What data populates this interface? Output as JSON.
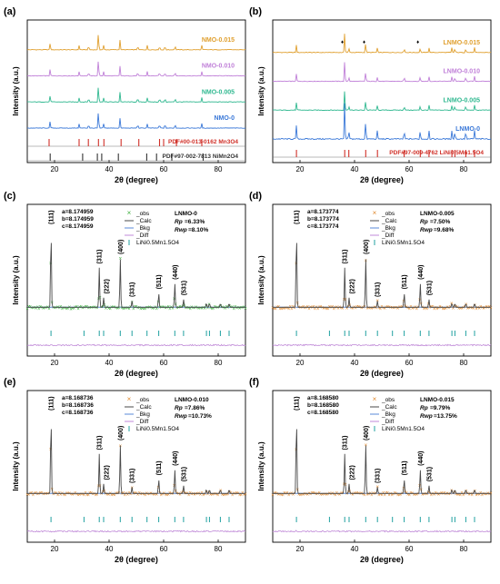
{
  "chart_data": [
    {
      "panel": "(a)",
      "type": "line",
      "xlabel": "2θ (degree)",
      "ylabel": "Intensity (a.u.)",
      "xlim": [
        10,
        90
      ],
      "xticks": [
        20,
        40,
        60,
        80
      ],
      "series": [
        {
          "name": "NMO-0.015",
          "color": "#e0a030"
        },
        {
          "name": "NMO-0.010",
          "color": "#c080d8"
        },
        {
          "name": "NMO-0.005",
          "color": "#30b890"
        },
        {
          "name": "NMO-0",
          "color": "#3a78d8"
        }
      ],
      "peaks": [
        18.4,
        29,
        32.5,
        36.1,
        38,
        44,
        50.5,
        54,
        58.5,
        60.5,
        64.2,
        74
      ],
      "reference_lines": [
        {
          "name": "PDF#00-013-0162 Mn3O4",
          "color": "#d03028",
          "positions": [
            18.0,
            29.0,
            32.4,
            36.1,
            38.1,
            44.4,
            50.9,
            58.5,
            60.0,
            64.7,
            74.0
          ]
        },
        {
          "name": "PDF#97-002-7813 NiMn2O4",
          "color": "#333333",
          "positions": [
            18.4,
            30.3,
            35.7,
            37.3,
            43.4,
            53.8,
            57.4,
            63.0,
            74.5
          ]
        }
      ]
    },
    {
      "panel": "(b)",
      "type": "line",
      "xlabel": "2θ (degree)",
      "ylabel": "Intensity (a.u.)",
      "xlim": [
        10,
        90
      ],
      "xticks": [
        20,
        40,
        60,
        80
      ],
      "series": [
        {
          "name": "LNMO-0.015",
          "color": "#e0a030"
        },
        {
          "name": "LNMO-0.010",
          "color": "#c080d8"
        },
        {
          "name": "LNMO-0.005",
          "color": "#30b890"
        },
        {
          "name": "LNMO-0",
          "color": "#3a78d8"
        }
      ],
      "peaks": [
        18.7,
        36.4,
        37.9,
        44.1,
        48.4,
        58.2,
        64.1,
        67.3,
        75.7,
        76.8,
        80.8,
        84.0
      ],
      "impurity_markers": [
        35.5,
        43.5,
        63.2
      ],
      "reference_lines": [
        {
          "name": "PDF#97-009-4762 LiNi0.5Mn1.5O4",
          "color": "#d03028",
          "positions": [
            18.7,
            36.4,
            37.9,
            44.1,
            48.4,
            58.2,
            64.1,
            67.3,
            75.7,
            76.8,
            80.8,
            84.0
          ]
        }
      ]
    },
    {
      "panel": "(c)",
      "type": "line",
      "sample": "LNMO-0",
      "xlabel": "2θ (degree)",
      "ylabel": "Intensity (a.u.)",
      "xlim": [
        10,
        90
      ],
      "xticks": [
        20,
        40,
        60,
        80
      ],
      "lattice": [
        "a=8.174959",
        "b=8.174959",
        "c=8.174959"
      ],
      "rp": "=6.33%",
      "rwp": "=8.10%",
      "obs_marker": "×",
      "obs_color": "#40b040"
    },
    {
      "panel": "(d)",
      "type": "line",
      "sample": "LNMO-0.005",
      "xlabel": "2θ (degree)",
      "ylabel": "Intensity (a.u.)",
      "xlim": [
        10,
        90
      ],
      "xticks": [
        20,
        40,
        60,
        80
      ],
      "lattice": [
        "a=8.173774",
        "b=8.173774",
        "c=8.173774"
      ],
      "rp": "=7.50%",
      "rwp": "=9.68%",
      "obs_marker": "×",
      "obs_color": "#e08a30"
    },
    {
      "panel": "(e)",
      "type": "line",
      "sample": "LNMO-0.010",
      "xlabel": "2θ (degree)",
      "ylabel": "Intensity (a.u.)",
      "xlim": [
        10,
        90
      ],
      "xticks": [
        20,
        40,
        60,
        80
      ],
      "lattice": [
        "a=8.168736",
        "b=8.168736",
        "c=8.168736"
      ],
      "rp": "=7.86%",
      "rwp": "=10.73%",
      "obs_marker": "×",
      "obs_color": "#e08a30"
    },
    {
      "panel": "(f)",
      "type": "line",
      "sample": "LNMO-0.015",
      "xlabel": "2θ (degree)",
      "ylabel": "Intensity (a.u.)",
      "xlim": [
        10,
        90
      ],
      "xticks": [
        20,
        40,
        60,
        80
      ],
      "lattice": [
        "a=8.168580",
        "b=8.168580",
        "c=8.168580"
      ],
      "rp": "=9.79%",
      "rwp": "=13.75%",
      "obs_marker": "×",
      "obs_color": "#e08a30"
    }
  ],
  "refine_legend": {
    "obs": "_obs",
    "calc": "_Calc",
    "bkg": "_Bkg",
    "diff": "_Diff",
    "phase": "LiNi0.5Mn1.5O4",
    "rp_label": "Rp",
    "rwp_label": "Rwp"
  },
  "refine_peaks": [
    {
      "hkl": "(111)",
      "x": 18.7,
      "h": 1.0
    },
    {
      "hkl": "(311)",
      "x": 36.4,
      "h": 0.5
    },
    {
      "hkl": "(222)",
      "x": 38.0,
      "h": 0.12
    },
    {
      "hkl": "(400)",
      "x": 44.1,
      "h": 0.62
    },
    {
      "hkl": "(331)",
      "x": 48.4,
      "h": 0.08
    },
    {
      "hkl": "(511)",
      "x": 58.2,
      "h": 0.18
    },
    {
      "hkl": "(440)",
      "x": 64.1,
      "h": 0.3
    },
    {
      "hkl": "(531)",
      "x": 67.3,
      "h": 0.1
    }
  ],
  "refine_minor_peaks": [
    75.7,
    76.8,
    80.8,
    84.0
  ],
  "bragg_ticks": [
    18.7,
    30.8,
    36.4,
    38.0,
    44.1,
    48.4,
    53.9,
    58.2,
    64.1,
    67.3,
    75.7,
    76.8,
    80.8,
    84.0
  ],
  "colors": {
    "calc": "#4a4a4a",
    "bkg": "#5a8ad8",
    "diff": "#c08ad8",
    "bragg": "#20a0a0",
    "axis": "#000000"
  }
}
